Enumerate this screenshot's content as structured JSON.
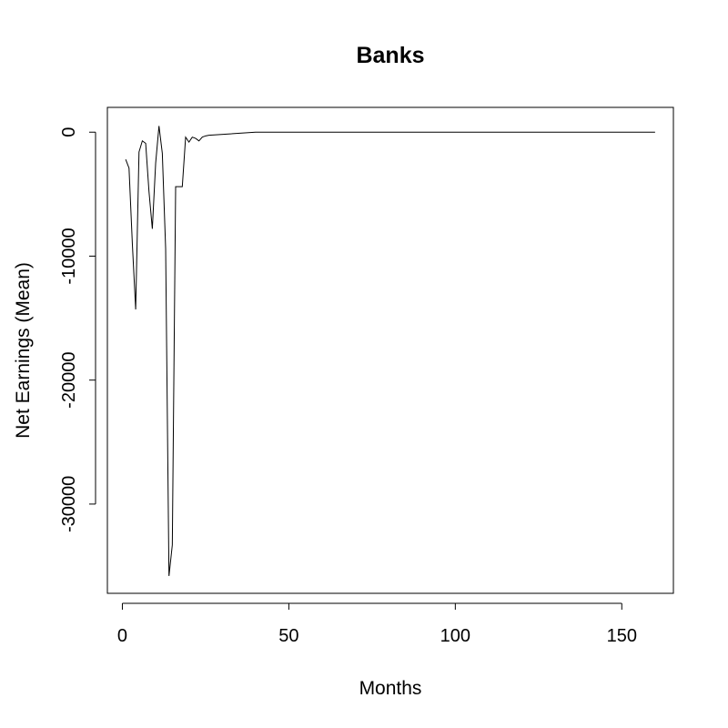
{
  "chart_data": {
    "type": "line",
    "title": "Banks",
    "xlabel": "Months",
    "ylabel": "Net Earnings (Mean)",
    "xlim": [
      -4.5,
      165.5
    ],
    "ylim": [
      -37200,
      2000
    ],
    "x_ticks": [
      0,
      50,
      100,
      150
    ],
    "x_tick_labels": [
      "0",
      "50",
      "100",
      "150"
    ],
    "y_ticks": [
      0,
      -10000,
      -20000,
      -30000
    ],
    "y_tick_labels": [
      "0",
      "-10000",
      "-20000",
      "-30000"
    ],
    "grid": false,
    "series": [
      {
        "x": [
          1,
          2,
          3,
          4,
          5,
          6,
          7,
          8,
          9,
          10,
          11,
          12,
          13,
          14,
          15,
          16,
          17,
          18,
          19,
          20,
          21,
          22,
          23,
          24,
          25,
          26,
          40,
          60,
          80,
          100,
          120,
          140,
          160
        ],
        "y": [
          -2200,
          -2900,
          -9000,
          -14300,
          -1600,
          -700,
          -900,
          -4800,
          -7800,
          -2500,
          500,
          -1700,
          -9400,
          -35800,
          -33300,
          -4400,
          -4400,
          -4400,
          -400,
          -800,
          -400,
          -500,
          -700,
          -400,
          -300,
          -250,
          0,
          0,
          0,
          0,
          0,
          0,
          0
        ]
      }
    ],
    "colors": {
      "line": "#000000",
      "background": "#ffffff"
    }
  }
}
